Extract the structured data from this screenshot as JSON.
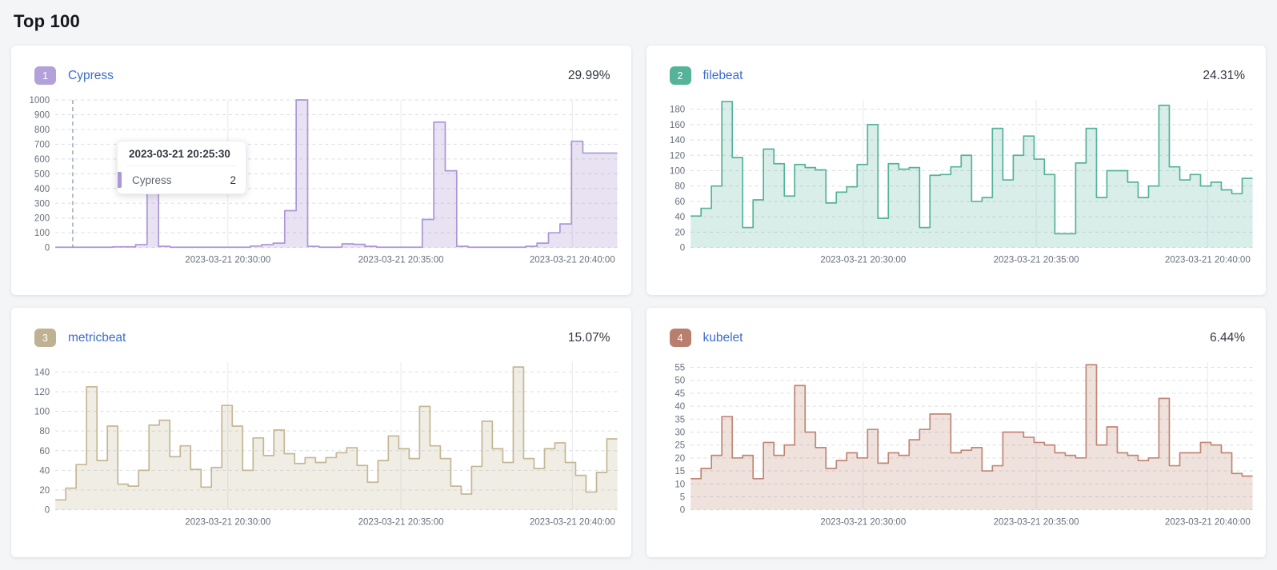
{
  "page": {
    "title": "Top 100",
    "background": "#f4f5f7"
  },
  "tooltip": {
    "title": "2023-03-21 20:25:30",
    "series": "Cypress",
    "value": "2",
    "accent": "#ab97d5"
  },
  "axis_style": {
    "label_color": "#69707d",
    "h_grid_color": "#d9dde6",
    "v_grid_color": "#e6e9ef",
    "cursor_color": "#8a93a5"
  },
  "chart_data": [
    {
      "type": "area",
      "rank": "1",
      "name": "Cypress",
      "percent": "29.99%",
      "line_color": "#ab97d5",
      "fill_color": "rgba(171,151,213,0.28)",
      "badge_color": "#b3a1da",
      "plot_max": 1000,
      "yticks": [
        0,
        100,
        200,
        300,
        400,
        500,
        600,
        700,
        800,
        900,
        1000
      ],
      "x_ticks": [
        {
          "label": "2023-03-21 20:30:00",
          "f": 0.307
        },
        {
          "label": "2023-03-21 20:35:00",
          "f": 0.615
        },
        {
          "label": "2023-03-21 20:40:00",
          "f": 0.92
        }
      ],
      "cursor_fraction": 0.031,
      "values": [
        2,
        2,
        2,
        2,
        2,
        5,
        5,
        20,
        500,
        8,
        2,
        2,
        2,
        2,
        2,
        2,
        2,
        10,
        20,
        30,
        250,
        1000,
        8,
        2,
        2,
        25,
        22,
        8,
        2,
        2,
        2,
        2,
        190,
        850,
        520,
        8,
        2,
        2,
        2,
        2,
        2,
        8,
        30,
        100,
        160,
        720,
        640,
        640,
        640
      ]
    },
    {
      "type": "area",
      "rank": "2",
      "name": "filebeat",
      "percent": "24.31%",
      "line_color": "#54b399",
      "fill_color": "rgba(84,179,153,0.22)",
      "badge_color": "#54b399",
      "plot_max": 192,
      "yticks": [
        0,
        20,
        40,
        60,
        80,
        100,
        120,
        140,
        160,
        180
      ],
      "x_ticks": [
        {
          "label": "2023-03-21 20:30:00",
          "f": 0.307
        },
        {
          "label": "2023-03-21 20:35:00",
          "f": 0.615
        },
        {
          "label": "2023-03-21 20:40:00",
          "f": 0.92
        }
      ],
      "values": [
        41,
        51,
        80,
        190,
        117,
        26,
        62,
        128,
        109,
        67,
        108,
        104,
        101,
        58,
        72,
        79,
        108,
        160,
        38,
        109,
        102,
        104,
        26,
        94,
        95,
        105,
        120,
        60,
        65,
        155,
        88,
        120,
        145,
        115,
        95,
        18,
        18,
        110,
        155,
        65,
        100,
        100,
        85,
        65,
        80,
        185,
        105,
        88,
        95,
        80,
        85,
        75,
        70,
        90
      ]
    },
    {
      "type": "area",
      "rank": "3",
      "name": "metricbeat",
      "percent": "15.07%",
      "line_color": "#c4b795",
      "fill_color": "rgba(196,183,149,0.25)",
      "badge_color": "#bfb292",
      "plot_max": 150,
      "yticks": [
        0,
        20,
        40,
        60,
        80,
        100,
        120,
        140
      ],
      "x_ticks": [
        {
          "label": "2023-03-21 20:30:00",
          "f": 0.307
        },
        {
          "label": "2023-03-21 20:35:00",
          "f": 0.615
        },
        {
          "label": "2023-03-21 20:40:00",
          "f": 0.92
        }
      ],
      "values": [
        10,
        22,
        46,
        125,
        50,
        85,
        26,
        24,
        40,
        86,
        91,
        54,
        65,
        41,
        23,
        43,
        106,
        85,
        40,
        73,
        55,
        81,
        57,
        47,
        53,
        48,
        53,
        58,
        63,
        45,
        28,
        50,
        75,
        62,
        52,
        105,
        65,
        52,
        24,
        16,
        44,
        90,
        62,
        48,
        145,
        52,
        42,
        62,
        68,
        48,
        35,
        18,
        38,
        72
      ]
    },
    {
      "type": "area",
      "rank": "4",
      "name": "kubelet",
      "percent": "6.44%",
      "line_color": "#c08775",
      "fill_color": "rgba(192,135,117,0.25)",
      "badge_color": "#b97f6e",
      "plot_max": 57,
      "yticks": [
        0,
        5,
        10,
        15,
        20,
        25,
        30,
        35,
        40,
        45,
        50,
        55
      ],
      "x_ticks": [
        {
          "label": "2023-03-21 20:30:00",
          "f": 0.307
        },
        {
          "label": "2023-03-21 20:35:00",
          "f": 0.615
        },
        {
          "label": "2023-03-21 20:40:00",
          "f": 0.92
        }
      ],
      "values": [
        12,
        16,
        21,
        36,
        20,
        21,
        12,
        26,
        21,
        25,
        48,
        30,
        24,
        16,
        19,
        22,
        20,
        31,
        18,
        22,
        21,
        27,
        31,
        37,
        37,
        22,
        23,
        24,
        15,
        17,
        30,
        30,
        28,
        26,
        25,
        22,
        21,
        20,
        56,
        25,
        32,
        22,
        21,
        19,
        20,
        43,
        17,
        22,
        22,
        26,
        25,
        22,
        14,
        13
      ]
    }
  ]
}
